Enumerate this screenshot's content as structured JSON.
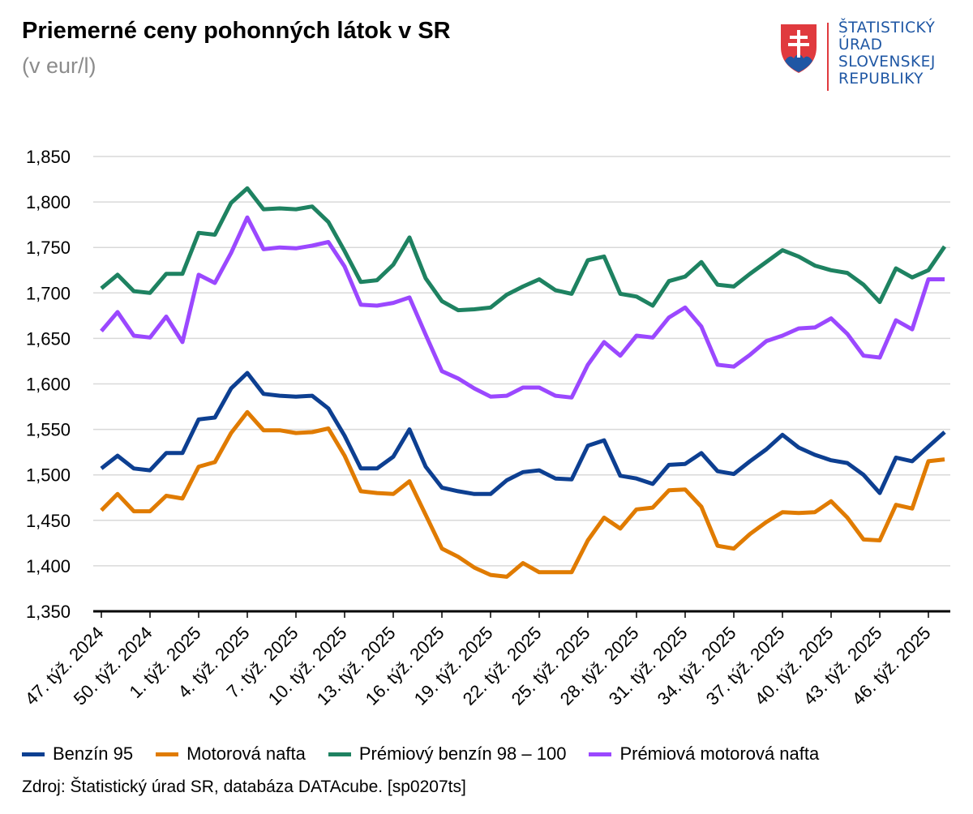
{
  "header": {
    "title": "Priemerné ceny pohonných látok v SR",
    "subtitle": "(v eur/l)"
  },
  "logo": {
    "text": "ŠTATISTICKÝ\nÚRAD\nSLOVENSKEJ\nREPUBLIKY",
    "icon": "slovak-coat-of-arms-icon",
    "colors": {
      "text": "#1f57a4",
      "shield_red": "#e03a3e",
      "shield_blue": "#1f57a4",
      "bar": "#e03a3e"
    }
  },
  "source": "Zdroj: Štatistický úrad SR, databáza DATAcube. [sp0207ts]",
  "chart_data": {
    "type": "line",
    "title": "Priemerné ceny pohonných látok v SR",
    "subtitle": "(v eur/l)",
    "ylim": [
      1.35,
      1.85
    ],
    "yticks": [
      "1,350",
      "1,400",
      "1,450",
      "1,500",
      "1,550",
      "1,600",
      "1,650",
      "1,700",
      "1,750",
      "1,800",
      "1,850"
    ],
    "ytick_values": [
      1.35,
      1.4,
      1.45,
      1.5,
      1.55,
      1.6,
      1.65,
      1.7,
      1.75,
      1.8,
      1.85
    ],
    "grid": true,
    "legend_position": "bottom",
    "x": [
      "47. týž. 2024",
      "48. týž. 2024",
      "49. týž. 2024",
      "50. týž. 2024",
      "51. týž. 2024",
      "52. týž. 2024",
      "1. týž. 2025",
      "2. týž. 2025",
      "3. týž. 2025",
      "4. týž. 2025",
      "5. týž. 2025",
      "6. týž. 2025",
      "7. týž. 2025",
      "8. týž. 2025",
      "9. týž. 2025",
      "10. týž. 2025",
      "11. týž. 2025",
      "12. týž. 2025",
      "13. týž. 2025",
      "14. týž. 2025",
      "15. týž. 2025",
      "16. týž. 2025",
      "17. týž. 2025",
      "18. týž. 2025",
      "19. týž. 2025",
      "20. týž. 2025",
      "21. týž. 2025",
      "22. týž. 2025",
      "23. týž. 2025",
      "24. týž. 2025",
      "25. týž. 2025",
      "26. týž. 2025",
      "27. týž. 2025",
      "28. týž. 2025",
      "29. týž. 2025",
      "30. týž. 2025",
      "31. týž. 2025",
      "32. týž. 2025",
      "33. týž. 2025",
      "34. týž. 2025",
      "35. týž. 2025",
      "36. týž. 2025",
      "37. týž. 2025",
      "38. týž. 2025",
      "39. týž. 2025",
      "40. týž. 2025",
      "41. týž. 2025",
      "42. týž. 2025",
      "43. týž. 2025",
      "44. týž. 2025",
      "45. týž. 2025",
      "46. týž. 2025",
      "47. týž. 2025"
    ],
    "tick_labels": [
      {
        "index": 0,
        "label": "47. týž. 2024"
      },
      {
        "index": 3,
        "label": "50. týž. 2024"
      },
      {
        "index": 6,
        "label": "1. týž. 2025"
      },
      {
        "index": 9,
        "label": "4. týž. 2025"
      },
      {
        "index": 12,
        "label": "7. týž. 2025"
      },
      {
        "index": 15,
        "label": "10. týž. 2025"
      },
      {
        "index": 18,
        "label": "13. týž. 2025"
      },
      {
        "index": 21,
        "label": "16. týž. 2025"
      },
      {
        "index": 24,
        "label": "19. týž. 2025"
      },
      {
        "index": 27,
        "label": "22. týž. 2025"
      },
      {
        "index": 30,
        "label": "25. týž. 2025"
      },
      {
        "index": 33,
        "label": "28. týž. 2025"
      },
      {
        "index": 36,
        "label": "31. týž. 2025"
      },
      {
        "index": 39,
        "label": "34. týž. 2025"
      },
      {
        "index": 42,
        "label": "37. týž. 2025"
      },
      {
        "index": 45,
        "label": "40. týž. 2025"
      },
      {
        "index": 48,
        "label": "43. týž. 2025"
      },
      {
        "index": 51,
        "label": "46. týž. 2025"
      }
    ],
    "series": [
      {
        "name": "Benzín 95",
        "color": "#0d3f91",
        "values": [
          1.507,
          1.521,
          1.507,
          1.505,
          1.524,
          1.524,
          1.561,
          1.563,
          1.595,
          1.612,
          1.589,
          1.587,
          1.586,
          1.587,
          1.573,
          1.543,
          1.507,
          1.507,
          1.52,
          1.55,
          1.509,
          1.486,
          1.482,
          1.479,
          1.479,
          1.494,
          1.503,
          1.505,
          1.496,
          1.495,
          1.532,
          1.538,
          1.499,
          1.496,
          1.49,
          1.511,
          1.512,
          1.524,
          1.504,
          1.501,
          1.515,
          1.528,
          1.544,
          1.53,
          1.522,
          1.516,
          1.513,
          1.5,
          1.48,
          1.519,
          1.515,
          1.531,
          1.547
        ]
      },
      {
        "name": "Motorová nafta",
        "color": "#e07b00",
        "values": [
          1.461,
          1.479,
          1.46,
          1.46,
          1.477,
          1.474,
          1.509,
          1.514,
          1.546,
          1.569,
          1.549,
          1.549,
          1.546,
          1.547,
          1.551,
          1.521,
          1.482,
          1.48,
          1.479,
          1.493,
          1.456,
          1.419,
          1.41,
          1.398,
          1.39,
          1.388,
          1.403,
          1.393,
          1.393,
          1.393,
          1.428,
          1.453,
          1.441,
          1.462,
          1.464,
          1.483,
          1.484,
          1.465,
          1.422,
          1.419,
          1.435,
          1.448,
          1.459,
          1.458,
          1.459,
          1.471,
          1.453,
          1.429,
          1.428,
          1.467,
          1.463,
          1.515,
          1.517
        ]
      },
      {
        "name": "Prémiový benzín 98 – 100",
        "color": "#1e8261",
        "values": [
          1.705,
          1.72,
          1.702,
          1.7,
          1.721,
          1.721,
          1.766,
          1.764,
          1.799,
          1.815,
          1.792,
          1.793,
          1.792,
          1.795,
          1.778,
          1.746,
          1.712,
          1.714,
          1.731,
          1.761,
          1.716,
          1.691,
          1.681,
          1.682,
          1.684,
          1.698,
          1.707,
          1.715,
          1.703,
          1.699,
          1.736,
          1.74,
          1.699,
          1.696,
          1.686,
          1.713,
          1.718,
          1.734,
          1.709,
          1.707,
          1.721,
          1.734,
          1.747,
          1.74,
          1.73,
          1.725,
          1.722,
          1.709,
          1.69,
          1.727,
          1.717,
          1.725,
          1.751
        ]
      },
      {
        "name": "Prémiová motorová nafta",
        "color": "#9b48ff",
        "values": [
          1.658,
          1.679,
          1.653,
          1.651,
          1.674,
          1.646,
          1.72,
          1.711,
          1.744,
          1.783,
          1.748,
          1.75,
          1.749,
          1.752,
          1.756,
          1.729,
          1.687,
          1.686,
          1.689,
          1.695,
          1.654,
          1.614,
          1.606,
          1.595,
          1.586,
          1.587,
          1.596,
          1.596,
          1.587,
          1.585,
          1.621,
          1.646,
          1.631,
          1.653,
          1.651,
          1.673,
          1.684,
          1.663,
          1.621,
          1.619,
          1.632,
          1.647,
          1.653,
          1.661,
          1.662,
          1.672,
          1.655,
          1.631,
          1.629,
          1.67,
          1.66,
          1.715,
          1.715
        ]
      }
    ]
  }
}
